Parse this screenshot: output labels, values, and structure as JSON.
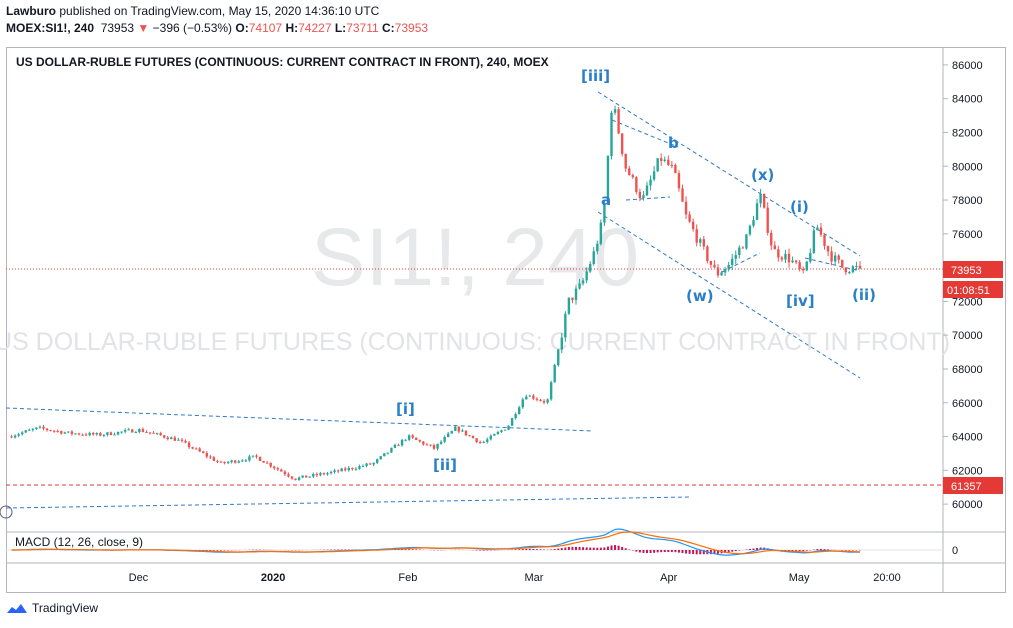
{
  "header": {
    "publisher": "Lawburo",
    "published_text": "published on TradingView.com, May 15, 2020 14:36:10 UTC",
    "symbol": "MOEX:SI1!, 240",
    "last": "73953",
    "change_arrow": "▼",
    "change": "−396 (−0.53%)",
    "o_label": "O:",
    "o": "74107",
    "h_label": "H:",
    "h": "74227",
    "l_label": "L:",
    "l": "73711",
    "c_label": "C:",
    "c": "73953"
  },
  "chart_data": {
    "type": "candlestick",
    "title": "US DOLLAR-RUBLE FUTURES (CONTINUOUS: CURRENT CONTRACT IN FRONT), 240, MOEX",
    "watermark_symbol": "SI1!, 240",
    "watermark_name": "US DOLLAR-RUBLE FUTURES (CONTINUOUS: CURRENT CONTRACT IN FRONT)",
    "ylim": [
      59000,
      87000
    ],
    "y_ticks": [
      60000,
      62000,
      64000,
      66000,
      68000,
      70000,
      72000,
      74000,
      76000,
      78000,
      80000,
      82000,
      84000,
      86000
    ],
    "x_ticks": [
      "Dec",
      "2020",
      "Feb",
      "Mar",
      "Apr",
      "May",
      "20:00"
    ],
    "last_price": 73953,
    "last_price_label": "73953",
    "countdown_label": "01:08:51",
    "support_level": 61357,
    "support_label": "61357",
    "price_path": [
      [
        "2019-11-01",
        64000
      ],
      [
        "2019-11-08",
        64500
      ],
      [
        "2019-11-15",
        64200
      ],
      [
        "2019-11-22",
        64100
      ],
      [
        "2019-12-01",
        64400
      ],
      [
        "2019-12-10",
        63800
      ],
      [
        "2019-12-20",
        62400
      ],
      [
        "2019-12-28",
        62800
      ],
      [
        "2020-01-06",
        61500
      ],
      [
        "2020-01-15",
        61900
      ],
      [
        "2020-01-24",
        62400
      ],
      [
        "2020-02-01",
        64000
      ],
      [
        "2020-02-07",
        63300
      ],
      [
        "2020-02-12",
        64500
      ],
      [
        "2020-02-18",
        63600
      ],
      [
        "2020-02-24",
        64600
      ],
      [
        "2020-02-28",
        66500
      ],
      [
        "2020-03-04",
        66000
      ],
      [
        "2020-03-09",
        72000
      ],
      [
        "2020-03-12",
        73000
      ],
      [
        "2020-03-15",
        75000
      ],
      [
        "2020-03-17",
        77000
      ],
      [
        "2020-03-19",
        84000
      ],
      [
        "2020-03-22",
        80000
      ],
      [
        "2020-03-26",
        78000
      ],
      [
        "2020-03-30",
        80500
      ],
      [
        "2020-04-02",
        79800
      ],
      [
        "2020-04-05",
        77000
      ],
      [
        "2020-04-09",
        75000
      ],
      [
        "2020-04-12",
        73600
      ],
      [
        "2020-04-15",
        74200
      ],
      [
        "2020-04-19",
        75800
      ],
      [
        "2020-04-22",
        78300
      ],
      [
        "2020-04-25",
        75000
      ],
      [
        "2020-04-29",
        74500
      ],
      [
        "2020-05-02",
        73500
      ],
      [
        "2020-05-05",
        76500
      ],
      [
        "2020-05-08",
        74800
      ],
      [
        "2020-05-11",
        74000
      ],
      [
        "2020-05-15",
        73953
      ]
    ],
    "wave_labels": [
      "[i]",
      "[ii]",
      "[iii]",
      "a",
      "b",
      "(w)",
      "(x)",
      "(i)",
      "[iv]",
      "(ii)"
    ],
    "macd_label": "MACD (12, 26, close, 9)",
    "macd_ticks": [
      "0"
    ],
    "colors": {
      "up": "#26a69a",
      "down": "#ef5350",
      "wave_label": "#2a7fc9",
      "trendline": "#3179c7",
      "last_line": "#e53935",
      "macd": "#2196f3",
      "signal": "#ff6d00",
      "hist": "#c2185b"
    }
  },
  "footer": {
    "brand": "TradingView",
    "logo_icon": "tradingview-logo-icon"
  }
}
